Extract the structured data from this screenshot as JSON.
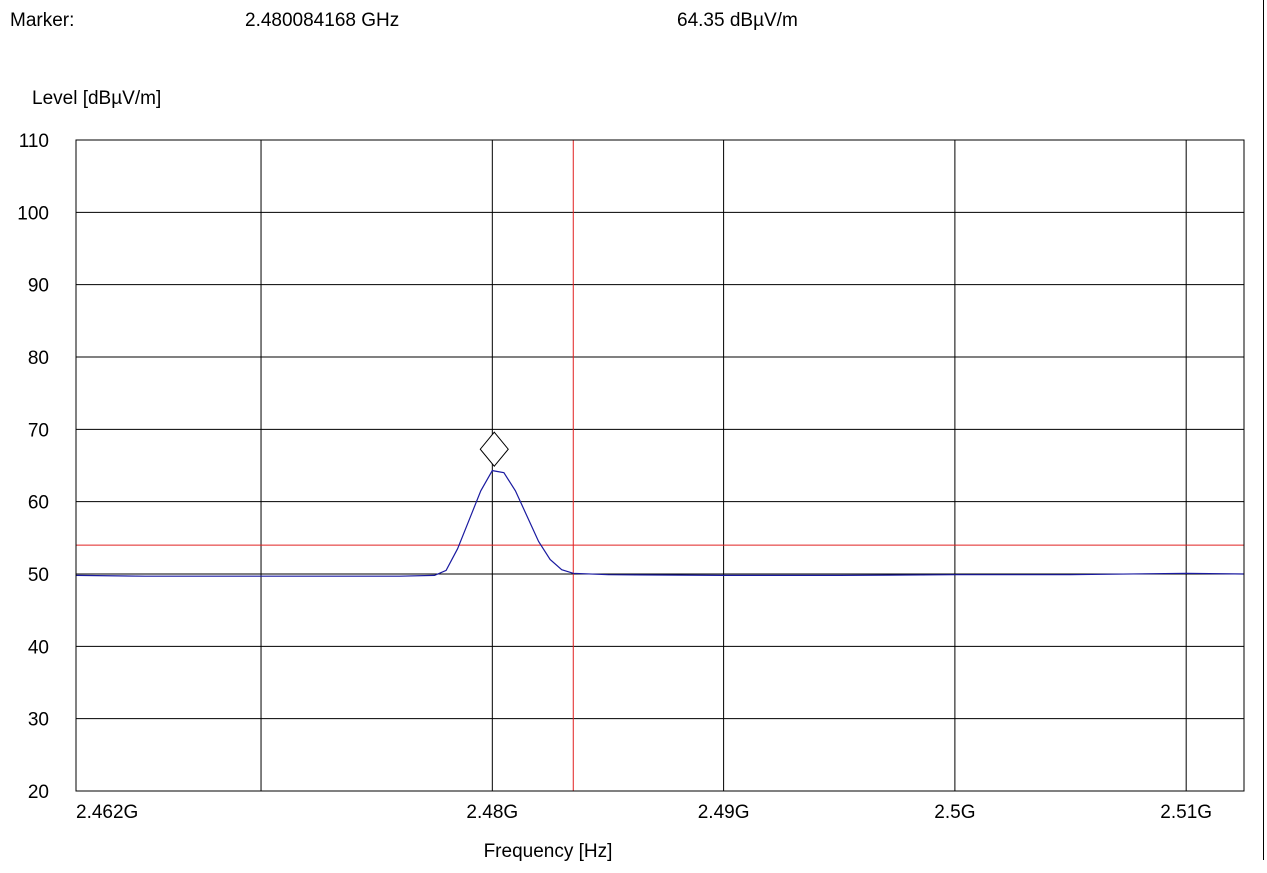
{
  "marker": {
    "label": "Marker:",
    "frequency": "2.480084168 GHz",
    "level": "64.35 dBµV/m"
  },
  "chart_data": {
    "type": "line",
    "title": "",
    "xlabel": "Frequency [Hz]",
    "ylabel": "Level [dBµV/m]",
    "xlim": [
      2.462,
      2.5125
    ],
    "ylim": [
      20,
      110
    ],
    "x_unit": "GHz",
    "yticks": [
      20,
      30,
      40,
      50,
      60,
      70,
      80,
      90,
      100,
      110
    ],
    "xticks": [
      {
        "value": 2.462,
        "label": "2.462G"
      },
      {
        "value": 2.48,
        "label": "2.48G"
      },
      {
        "value": 2.49,
        "label": "2.49G"
      },
      {
        "value": 2.5,
        "label": "2.5G"
      },
      {
        "value": 2.51,
        "label": "2.51G"
      }
    ],
    "x_gridlines": [
      2.462,
      2.47,
      2.48,
      2.49,
      2.5,
      2.51,
      2.5125
    ],
    "grid": true,
    "limit_line": {
      "y": 54,
      "color": "#e02020"
    },
    "band_edge": {
      "x": 2.4835,
      "color": "#e02020"
    },
    "marker_point": {
      "x": 2.480084168,
      "y": 64.35
    },
    "series": [
      {
        "color": "#1a1aa0",
        "x": [
          2.462,
          2.465,
          2.468,
          2.47,
          2.473,
          2.476,
          2.4775,
          2.478,
          2.4785,
          2.479,
          2.4795,
          2.48,
          2.4805,
          2.481,
          2.4815,
          2.482,
          2.4825,
          2.483,
          2.4835,
          2.485,
          2.49,
          2.495,
          2.5,
          2.505,
          2.51,
          2.5125
        ],
        "y": [
          49.8,
          49.7,
          49.7,
          49.7,
          49.7,
          49.7,
          49.8,
          50.5,
          53.5,
          57.5,
          61.5,
          64.3,
          64.0,
          61.5,
          58.0,
          54.5,
          52.0,
          50.6,
          50.1,
          49.9,
          49.8,
          49.8,
          49.9,
          49.9,
          50.1,
          50.0
        ]
      }
    ]
  }
}
